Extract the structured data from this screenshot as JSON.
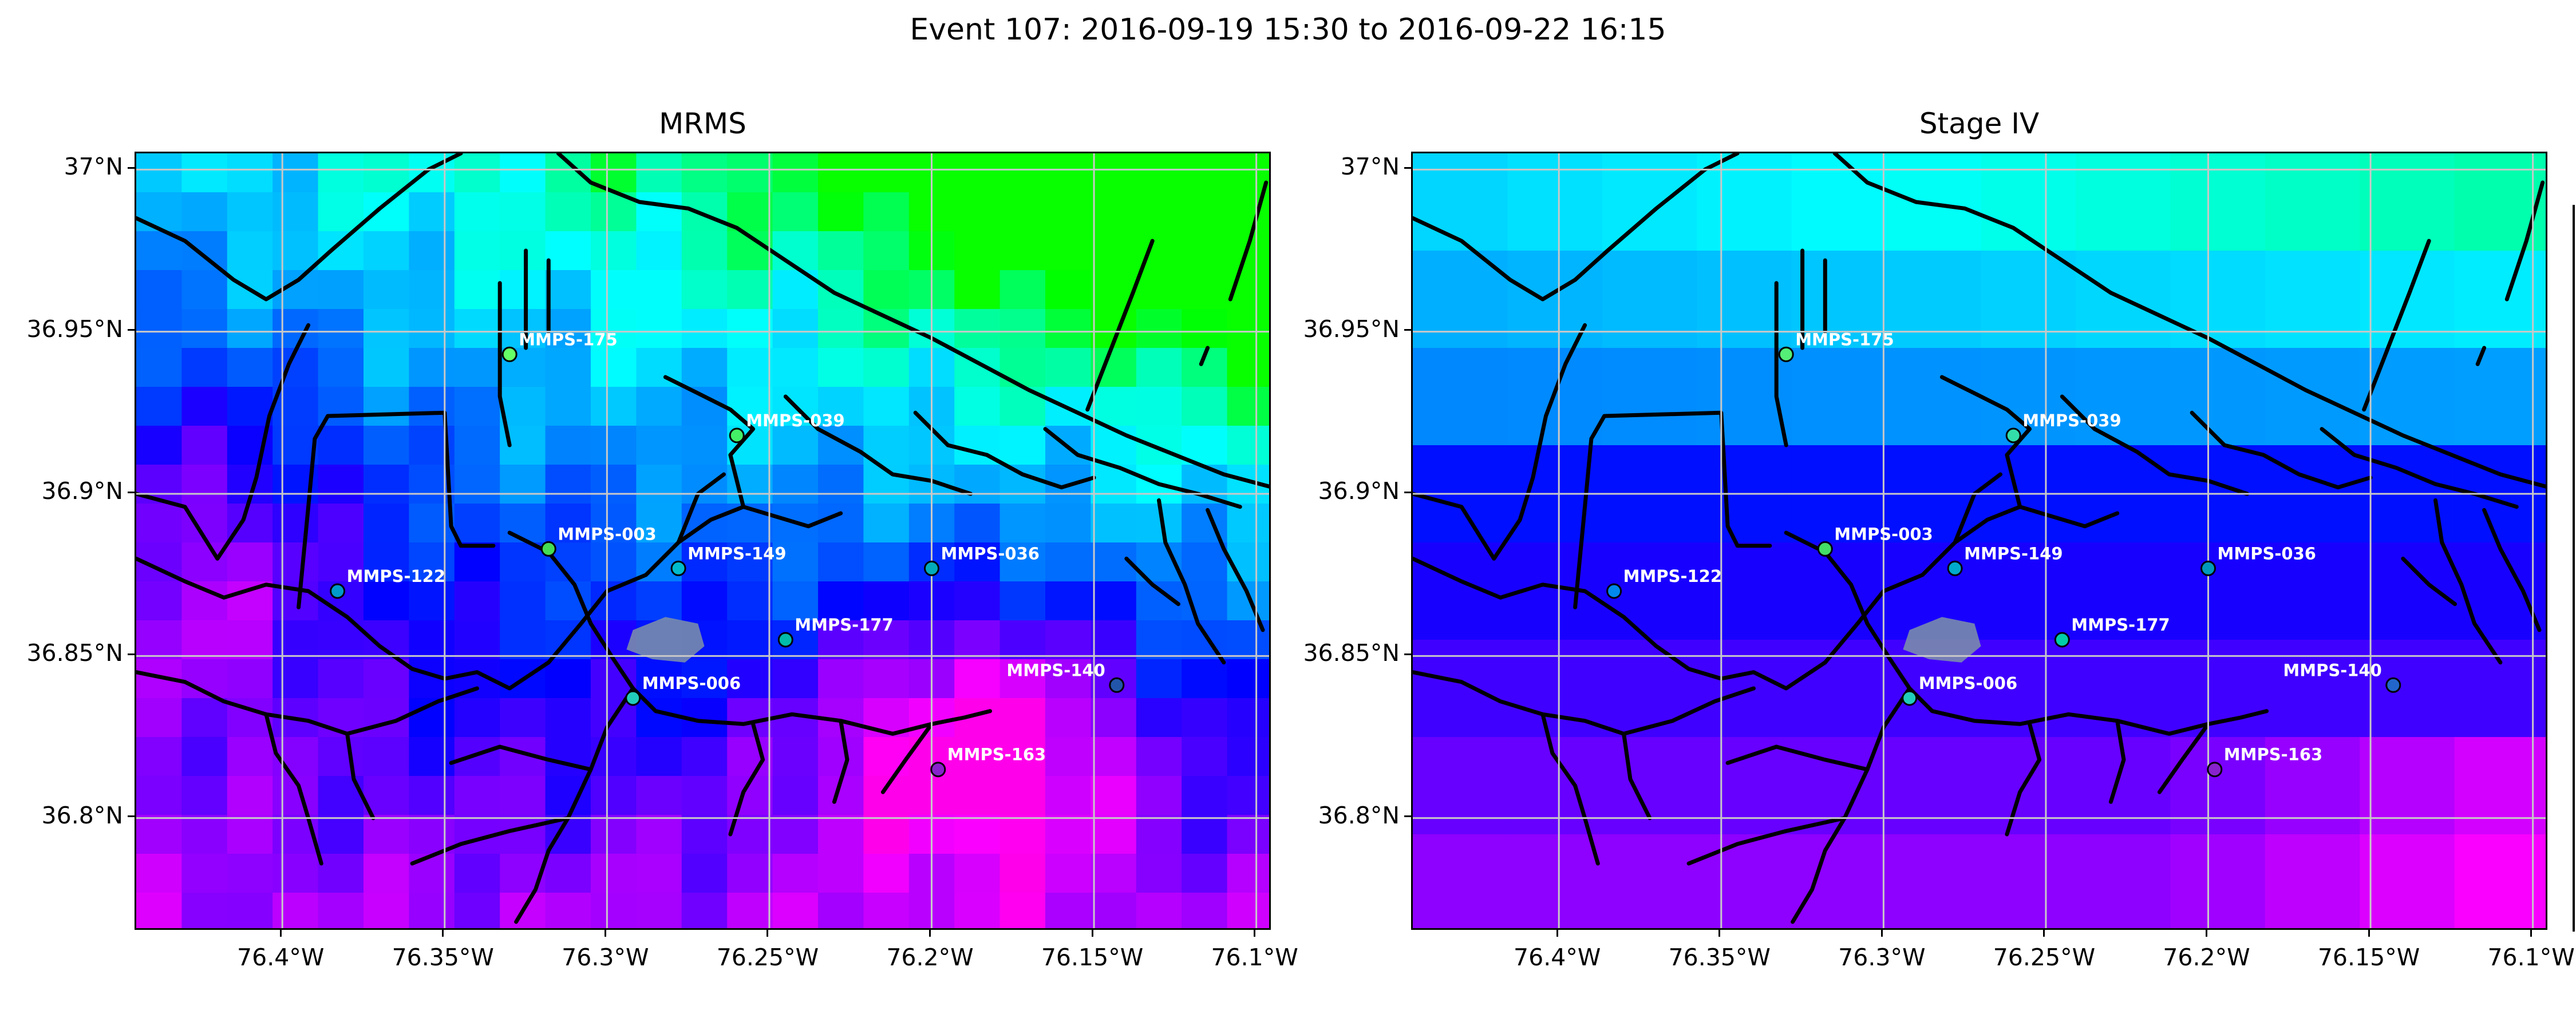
{
  "figure": {
    "suptitle": "Event 107: 2016-09-19 15:30 to 2016-09-22 16:15"
  },
  "panels": [
    {
      "title": "MRMS",
      "style": "fine"
    },
    {
      "title": "Stage IV",
      "style": "coarse"
    }
  ],
  "axes": {
    "lon_range": [
      -76.445,
      -76.095
    ],
    "lat_range": [
      36.765,
      37.005
    ],
    "x_ticks": [
      {
        "value": -76.4,
        "label": "76.4°W"
      },
      {
        "value": -76.35,
        "label": "76.35°W"
      },
      {
        "value": -76.3,
        "label": "76.3°W"
      },
      {
        "value": -76.25,
        "label": "76.25°W"
      },
      {
        "value": -76.2,
        "label": "76.2°W"
      },
      {
        "value": -76.15,
        "label": "76.15°W"
      },
      {
        "value": -76.1,
        "label": "76.1°W"
      }
    ],
    "y_ticks": [
      {
        "value": 37.0,
        "label": "37°N"
      },
      {
        "value": 36.95,
        "label": "36.95°N"
      },
      {
        "value": 36.9,
        "label": "36.9°N"
      },
      {
        "value": 36.85,
        "label": "36.85°N"
      },
      {
        "value": 36.8,
        "label": "36.8°N"
      }
    ],
    "grid": true
  },
  "stations": [
    {
      "name": "MMPS-175",
      "lon": -76.33,
      "lat": 36.943,
      "color_mrms": "#66ff66",
      "color_st4": "#55ee77",
      "label_side": "right"
    },
    {
      "name": "MMPS-039",
      "lon": -76.26,
      "lat": 36.918,
      "color_mrms": "#44ee66",
      "color_st4": "#33ddaa",
      "label_side": "right"
    },
    {
      "name": "MMPS-003",
      "lon": -76.318,
      "lat": 36.883,
      "color_mrms": "#44dd55",
      "color_st4": "#44dd66",
      "label_side": "right"
    },
    {
      "name": "MMPS-149",
      "lon": -76.278,
      "lat": 36.877,
      "color_mrms": "#00bbcc",
      "color_st4": "#00aacc",
      "label_side": "right"
    },
    {
      "name": "MMPS-036",
      "lon": -76.2,
      "lat": 36.877,
      "color_mrms": "#00aabb",
      "color_st4": "#0099bb",
      "label_side": "right"
    },
    {
      "name": "MMPS-122",
      "lon": -76.383,
      "lat": 36.87,
      "color_mrms": "#0099cc",
      "color_st4": "#0088ee",
      "label_side": "right"
    },
    {
      "name": "MMPS-177",
      "lon": -76.245,
      "lat": 36.855,
      "color_mrms": "#00bbaa",
      "color_st4": "#00ccaa",
      "label_side": "right"
    },
    {
      "name": "MMPS-140",
      "lon": -76.143,
      "lat": 36.841,
      "color_mrms": "#2255aa",
      "color_st4": "#2266cc",
      "label_side": "left"
    },
    {
      "name": "MMPS-006",
      "lon": -76.292,
      "lat": 36.837,
      "color_mrms": "#22ccbb",
      "color_st4": "#22ccbb",
      "label_side": "right"
    },
    {
      "name": "MMPS-163",
      "lon": -76.198,
      "lat": 36.815,
      "color_mrms": "#8822cc",
      "color_st4": "#8822cc",
      "label_side": "right"
    }
  ],
  "colors": {
    "grid": "#c8c8c8",
    "coast": "#000000",
    "station_edge": "#000000",
    "label": "#ffffff",
    "lake": "#7f93a8"
  }
}
